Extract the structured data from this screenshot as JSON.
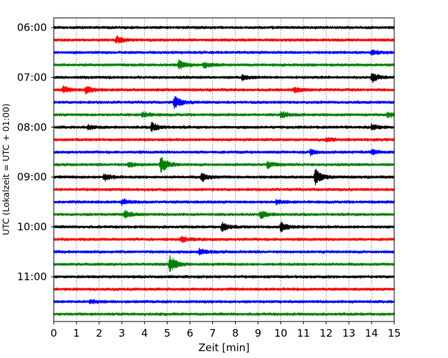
{
  "chart_data": {
    "type": "line",
    "title": "",
    "xlabel": "Zeit  [min]",
    "ylabel": "UTC (Lokalzeit = UTC + 01:00)",
    "xlim": [
      0,
      15
    ],
    "x_ticks": [
      0,
      1,
      2,
      3,
      4,
      5,
      6,
      7,
      8,
      9,
      10,
      11,
      12,
      13,
      14,
      15
    ],
    "y_tick_labels": [
      "06:00",
      "07:00",
      "08:00",
      "09:00",
      "10:00",
      "11:00"
    ],
    "y_tick_trace_index": [
      0,
      4,
      8,
      12,
      16,
      20
    ],
    "grid": "vertical dotted",
    "trace_minutes": 15,
    "trace_colors": [
      "#000000",
      "#ff0000",
      "#0000ff",
      "#008000"
    ],
    "traces": [
      {
        "start": "06:00",
        "color": "#000000",
        "events": []
      },
      {
        "start": "06:15",
        "color": "#ff0000",
        "events": [
          {
            "t": 2.75,
            "amp": 0.45
          }
        ]
      },
      {
        "start": "06:30",
        "color": "#0000ff",
        "events": [
          {
            "t": 14.0,
            "amp": 0.3
          }
        ]
      },
      {
        "start": "06:45",
        "color": "#008000",
        "events": [
          {
            "t": 5.5,
            "amp": 0.5
          },
          {
            "t": 6.6,
            "amp": 0.3
          }
        ]
      },
      {
        "start": "07:00",
        "color": "#000000",
        "events": [
          {
            "t": 14.0,
            "amp": 0.55
          },
          {
            "t": 8.3,
            "amp": 0.25
          }
        ]
      },
      {
        "start": "07:15",
        "color": "#ff0000",
        "events": [
          {
            "t": 0.4,
            "amp": 0.4
          },
          {
            "t": 1.4,
            "amp": 0.5
          },
          {
            "t": 10.6,
            "amp": 0.3
          }
        ]
      },
      {
        "start": "07:30",
        "color": "#0000ff",
        "events": [
          {
            "t": 5.3,
            "amp": 0.75
          }
        ]
      },
      {
        "start": "07:45",
        "color": "#008000",
        "events": [
          {
            "t": 3.9,
            "amp": 0.3
          },
          {
            "t": 10.0,
            "amp": 0.4
          },
          {
            "t": 14.7,
            "amp": 0.3
          }
        ]
      },
      {
        "start": "08:00",
        "color": "#000000",
        "events": [
          {
            "t": 4.3,
            "amp": 0.55
          },
          {
            "t": 1.5,
            "amp": 0.25
          },
          {
            "t": 14.0,
            "amp": 0.3
          }
        ]
      },
      {
        "start": "08:15",
        "color": "#ff0000",
        "events": [
          {
            "t": 12.0,
            "amp": 0.25
          }
        ]
      },
      {
        "start": "08:30",
        "color": "#0000ff",
        "events": [
          {
            "t": 11.3,
            "amp": 0.3
          },
          {
            "t": 14.0,
            "amp": 0.3
          }
        ]
      },
      {
        "start": "08:45",
        "color": "#008000",
        "events": [
          {
            "t": 4.7,
            "amp": 0.95
          },
          {
            "t": 9.4,
            "amp": 0.4
          },
          {
            "t": 3.3,
            "amp": 0.3
          }
        ]
      },
      {
        "start": "09:00",
        "color": "#000000",
        "events": [
          {
            "t": 11.5,
            "amp": 0.9
          },
          {
            "t": 6.5,
            "amp": 0.5
          },
          {
            "t": 2.2,
            "amp": 0.45
          }
        ]
      },
      {
        "start": "09:15",
        "color": "#ff0000",
        "events": []
      },
      {
        "start": "09:30",
        "color": "#0000ff",
        "events": [
          {
            "t": 3.0,
            "amp": 0.3
          },
          {
            "t": 9.8,
            "amp": 0.25
          }
        ]
      },
      {
        "start": "09:45",
        "color": "#008000",
        "events": [
          {
            "t": 3.1,
            "amp": 0.45
          },
          {
            "t": 9.1,
            "amp": 0.45
          }
        ]
      },
      {
        "start": "10:00",
        "color": "#000000",
        "events": [
          {
            "t": 10.0,
            "amp": 0.55
          },
          {
            "t": 7.4,
            "amp": 0.5
          }
        ]
      },
      {
        "start": "10:15",
        "color": "#ff0000",
        "events": [
          {
            "t": 5.6,
            "amp": 0.3
          }
        ]
      },
      {
        "start": "10:30",
        "color": "#0000ff",
        "events": [
          {
            "t": 6.4,
            "amp": 0.4
          }
        ]
      },
      {
        "start": "10:45",
        "color": "#008000",
        "events": [
          {
            "t": 5.1,
            "amp": 0.95
          }
        ]
      },
      {
        "start": "11:00",
        "color": "#000000",
        "events": []
      },
      {
        "start": "11:15",
        "color": "#ff0000",
        "events": []
      },
      {
        "start": "11:30",
        "color": "#0000ff",
        "events": [
          {
            "t": 1.6,
            "amp": 0.25
          }
        ]
      },
      {
        "start": "11:45",
        "color": "#008000",
        "events": []
      }
    ]
  }
}
